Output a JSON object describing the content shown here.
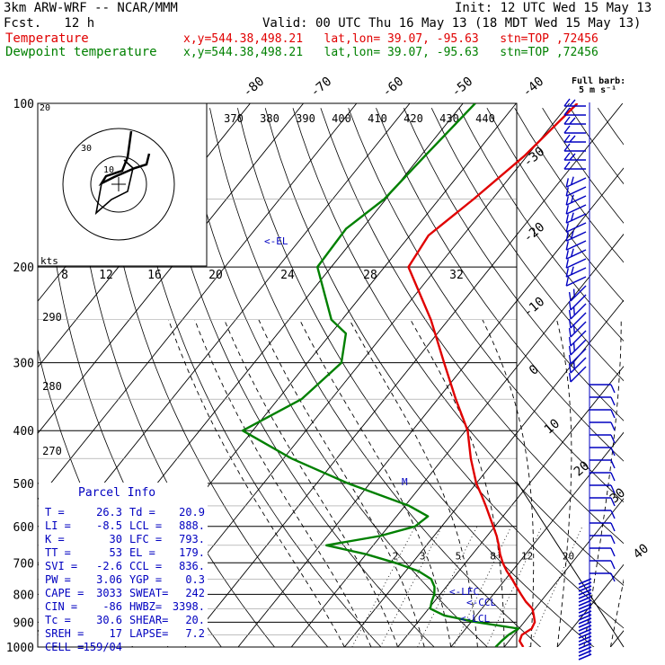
{
  "header": {
    "model": "3km ARW-WRF -- NCAR/MMM",
    "init": "Init: 12 UTC Wed 15 May 13",
    "fcst": "Fcst.   12 h",
    "valid": "Valid: 00 UTC Thu 16 May 13 (18 MDT Wed 15 May 13)",
    "temp_label": "Temperature",
    "dew_label": "Dewpoint temperature",
    "location": "x,y=544.38,498.21   lat,lon= 39.07, -95.63   stn=TOP ,72456"
  },
  "wind_barb_label": [
    "Full barb:",
    "5 m s⁻¹"
  ],
  "colors": {
    "temperature": "#e00000",
    "dewpoint": "#008000",
    "wind": "#0000c0",
    "indices": "#0000c0",
    "grid": "#000000"
  },
  "chart_data": {
    "type": "line",
    "diagram": "skew-T log-p",
    "y_axis": {
      "quantity": "pressure (hPa)",
      "scale": "log",
      "range": [
        1000,
        100
      ],
      "ticks": [
        100,
        200,
        300,
        400,
        500,
        600,
        700,
        800,
        900,
        1000
      ]
    },
    "isotherm_labels": [
      -80,
      -70,
      -60,
      -50,
      -40,
      -30,
      -20,
      -10,
      0,
      10,
      20,
      30,
      40
    ],
    "theta_labels": [
      370,
      380,
      390,
      400,
      410,
      420,
      430,
      440
    ],
    "theta_low_labels": [
      290,
      280,
      270
    ],
    "mixing_ratio_labels": [
      "2",
      "3",
      "5",
      "8",
      "12",
      "20"
    ],
    "hodograph": {
      "label": "kts",
      "ring_labels": [
        "8",
        "12",
        "16",
        "20",
        "24",
        "28",
        "32"
      ],
      "ring_marks": [
        "20",
        "10",
        "30"
      ]
    },
    "series": [
      {
        "name": "Temperature",
        "color": "#e00000",
        "points": [
          [
            1000,
            23.6
          ],
          [
            975,
            22.0
          ],
          [
            950,
            21.5
          ],
          [
            925,
            22.4
          ],
          [
            900,
            22.0
          ],
          [
            875,
            20.8
          ],
          [
            850,
            19.5
          ],
          [
            825,
            17.2
          ],
          [
            800,
            15.2
          ],
          [
            775,
            13.2
          ],
          [
            750,
            11.2
          ],
          [
            725,
            9.0
          ],
          [
            700,
            7.0
          ],
          [
            675,
            5.2
          ],
          [
            650,
            3.6
          ],
          [
            625,
            1.8
          ],
          [
            600,
            -0.3
          ],
          [
            575,
            -2.5
          ],
          [
            550,
            -4.8
          ],
          [
            525,
            -7.3
          ],
          [
            500,
            -10.0
          ],
          [
            450,
            -14.8
          ],
          [
            400,
            -19.6
          ],
          [
            350,
            -26.6
          ],
          [
            300,
            -34.3
          ],
          [
            250,
            -43.3
          ],
          [
            200,
            -55.5
          ],
          [
            175,
            -56.5
          ],
          [
            150,
            -53.5
          ],
          [
            125,
            -50.5
          ],
          [
            100,
            -48.5
          ]
        ]
      },
      {
        "name": "Dewpoint temperature",
        "color": "#008000",
        "points": [
          [
            1000,
            18.4
          ],
          [
            975,
            18.6
          ],
          [
            950,
            19.0
          ],
          [
            925,
            19.9
          ],
          [
            900,
            11.0
          ],
          [
            875,
            4.0
          ],
          [
            850,
            0.3
          ],
          [
            825,
            -0.5
          ],
          [
            800,
            -1.1
          ],
          [
            775,
            -2.2
          ],
          [
            750,
            -4.0
          ],
          [
            725,
            -7.6
          ],
          [
            700,
            -13.2
          ],
          [
            675,
            -20.0
          ],
          [
            650,
            -28.8
          ],
          [
            625,
            -20.2
          ],
          [
            600,
            -15.0
          ],
          [
            575,
            -14.1
          ],
          [
            550,
            -19.2
          ],
          [
            500,
            -34.1
          ],
          [
            450,
            -48.5
          ],
          [
            400,
            -61.9
          ],
          [
            350,
            -55.6
          ],
          [
            300,
            -53.6
          ],
          [
            265,
            -57.2
          ],
          [
            250,
            -62.0
          ],
          [
            200,
            -72.6
          ],
          [
            170,
            -73.0
          ],
          [
            150,
            -70.3
          ],
          [
            125,
            -69.2
          ],
          [
            100,
            -67.7
          ]
        ]
      }
    ],
    "annotations": [
      "<-EL",
      "<-LFC",
      "<-CCL",
      "<-LCL",
      "M"
    ]
  },
  "parcel_info": {
    "title": "Parcel Info",
    "rows": [
      [
        "T  =",
        "26.3",
        "Td =",
        "20.9"
      ],
      [
        "LI =",
        "-8.5",
        "LCL =",
        "888."
      ],
      [
        "K  =",
        "30",
        "LFC =",
        "793."
      ],
      [
        "TT =",
        "53",
        "EL  =",
        "179."
      ],
      [
        "SVI =",
        "-2.6",
        "CCL =",
        "836."
      ],
      [
        "PW =",
        "3.06",
        "YGP =",
        "0.3"
      ],
      [
        "CAPE =",
        "3033",
        "SWEAT=",
        "242"
      ],
      [
        "CIN =",
        "-86",
        "HWBZ=",
        "3398."
      ],
      [
        "Tc =",
        "30.6",
        "SHEAR=",
        "20."
      ],
      [
        "SREH =",
        "17",
        "LAPSE=",
        "7.2"
      ],
      [
        "CELL =",
        "159/04",
        "",
        ""
      ]
    ]
  }
}
